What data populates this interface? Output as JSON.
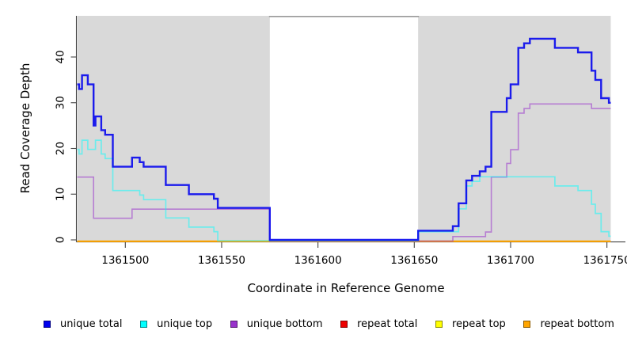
{
  "chart_data": {
    "type": "line",
    "subtype": "step-after coverage plot",
    "title": "",
    "xlabel": "Coordinate in Reference Genome",
    "ylabel": "Read Coverage Depth",
    "xlim": [
      1361475,
      1361752
    ],
    "ylim": [
      0,
      49
    ],
    "x_ticks": [
      1361500,
      1361550,
      1361600,
      1361650,
      1361700,
      1361750
    ],
    "y_ticks": [
      0,
      10,
      20,
      30,
      40
    ],
    "grid": false,
    "legend_position": "bottom",
    "panel_background": "#d9d9d9",
    "gap_background": "#ffffff",
    "gap_top_line_color": "#999999",
    "axis_color": "#444444",
    "shaded_regions": [
      [
        1361475,
        1361575
      ],
      [
        1361652,
        1361752
      ]
    ],
    "gap_region": [
      1361575,
      1361652
    ],
    "series": [
      {
        "name": "repeat total",
        "color": "#ee0000",
        "opacity": 1,
        "points": [
          [
            1361475,
            0
          ]
        ]
      },
      {
        "name": "repeat top",
        "color": "#ffff00",
        "opacity": 1,
        "points": [
          [
            1361475,
            0
          ]
        ]
      },
      {
        "name": "repeat bottom",
        "color": "#ffa500",
        "opacity": 1,
        "points": [
          [
            1361475,
            0
          ]
        ]
      },
      {
        "name": "unique bottom",
        "color": "#9932cc",
        "opacity": 0.55,
        "points": [
          [
            1361475,
            14
          ],
          [
            1361483.5,
            5
          ],
          [
            1361503.5,
            7
          ],
          [
            1361575,
            0
          ],
          [
            1361670,
            1
          ],
          [
            1361687,
            2
          ],
          [
            1361690,
            14
          ],
          [
            1361698,
            17
          ],
          [
            1361700,
            20
          ],
          [
            1361704,
            28
          ],
          [
            1361707,
            29
          ],
          [
            1361710,
            30
          ],
          [
            1361742,
            29
          ]
        ]
      },
      {
        "name": "unique top",
        "color": "#00ffff",
        "opacity": 0.5,
        "points": [
          [
            1361475,
            20
          ],
          [
            1361476,
            19
          ],
          [
            1361477.5,
            22
          ],
          [
            1361480.5,
            20
          ],
          [
            1361484.5,
            22
          ],
          [
            1361487.5,
            19
          ],
          [
            1361489.5,
            18
          ],
          [
            1361493.5,
            11
          ],
          [
            1361507.5,
            10
          ],
          [
            1361509.5,
            9
          ],
          [
            1361521,
            5
          ],
          [
            1361533,
            3
          ],
          [
            1361546,
            2
          ],
          [
            1361548,
            0
          ],
          [
            1361652,
            2
          ],
          [
            1361673,
            7
          ],
          [
            1361677,
            12
          ],
          [
            1361680,
            13
          ],
          [
            1361684,
            14
          ],
          [
            1361723,
            12
          ],
          [
            1361735,
            11
          ],
          [
            1361742,
            8
          ],
          [
            1361744,
            6
          ],
          [
            1361747,
            2
          ],
          [
            1361751,
            1
          ]
        ]
      },
      {
        "name": "unique total",
        "color": "#0000ee",
        "opacity": 0.88,
        "points": [
          [
            1361475,
            34
          ],
          [
            1361476,
            33
          ],
          [
            1361477.5,
            36
          ],
          [
            1361480.5,
            34
          ],
          [
            1361483.5,
            25
          ],
          [
            1361484.5,
            27
          ],
          [
            1361487.5,
            24
          ],
          [
            1361489.5,
            23
          ],
          [
            1361493.5,
            16
          ],
          [
            1361503.5,
            18
          ],
          [
            1361507.5,
            17
          ],
          [
            1361509.5,
            16
          ],
          [
            1361521,
            12
          ],
          [
            1361533,
            10
          ],
          [
            1361546,
            9
          ],
          [
            1361548,
            7
          ],
          [
            1361575,
            0
          ],
          [
            1361652,
            2
          ],
          [
            1361670,
            3
          ],
          [
            1361673,
            8
          ],
          [
            1361677,
            13
          ],
          [
            1361680,
            14
          ],
          [
            1361684,
            15
          ],
          [
            1361687,
            16
          ],
          [
            1361690,
            28
          ],
          [
            1361698,
            31
          ],
          [
            1361700,
            34
          ],
          [
            1361704,
            42
          ],
          [
            1361707,
            43
          ],
          [
            1361710,
            44
          ],
          [
            1361723,
            42
          ],
          [
            1361735,
            41
          ],
          [
            1361742,
            37
          ],
          [
            1361744,
            35
          ],
          [
            1361747,
            31
          ],
          [
            1361751,
            30
          ]
        ]
      }
    ],
    "legend": [
      {
        "label": "unique total",
        "color": "#0000ee"
      },
      {
        "label": "unique top",
        "color": "#00ffff"
      },
      {
        "label": "unique bottom",
        "color": "#9932cc"
      },
      {
        "label": "repeat total",
        "color": "#ee0000"
      },
      {
        "label": "repeat top",
        "color": "#ffff00"
      },
      {
        "label": "repeat bottom",
        "color": "#ffa500"
      }
    ]
  }
}
